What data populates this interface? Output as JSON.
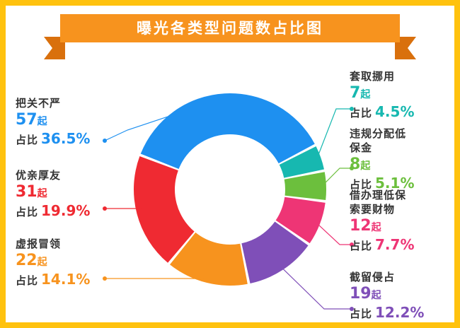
{
  "title": "曝光各类型问题数占比图",
  "labels": {
    "count_unit": "起",
    "pct_prefix": "占比"
  },
  "colors": {
    "frame": "#ffc20e",
    "banner": "#f7931e",
    "banner_dark": "#d9700d"
  },
  "chart_data": {
    "type": "pie",
    "title": "曝光各类型问题数占比图",
    "hole": "donut",
    "categories": [
      "把关不严",
      "套取挪用",
      "违规分配低保金",
      "借办理低保索要财物",
      "截留侵占",
      "虚报冒领",
      "优亲厚友"
    ],
    "values": [
      57,
      7,
      8,
      12,
      19,
      22,
      31
    ],
    "percent_labels": [
      "36.5%",
      "4.5%",
      "5.1%",
      "7.7%",
      "12.2%",
      "14.1%",
      "19.9%"
    ],
    "colors": [
      "#1e90f0",
      "#17b8b0",
      "#6cbf3d",
      "#ee3575",
      "#7f4fb8",
      "#f7931e",
      "#ef2a32"
    ]
  }
}
